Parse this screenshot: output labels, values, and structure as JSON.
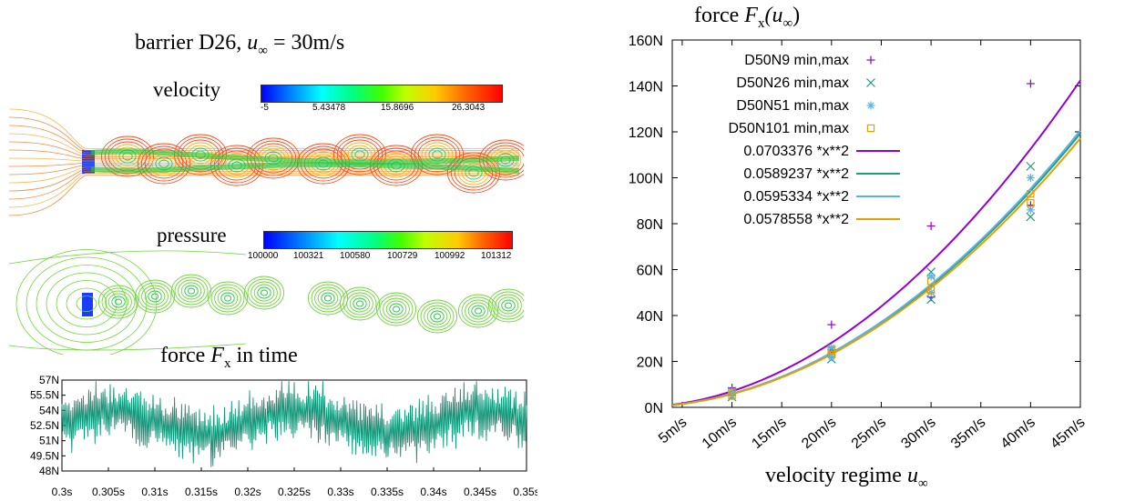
{
  "left": {
    "title_prefix": "barrier D26,",
    "title_math": "u",
    "title_sub": "∞",
    "title_suffix": " = 30m/s",
    "velocity": {
      "label": "velocity",
      "ticks": [
        "-5",
        "5.43478",
        "15.8696",
        "26.3043"
      ],
      "line_color": "#f26b1a"
    },
    "pressure": {
      "label": "pressure",
      "ticks": [
        "100000",
        "100321",
        "100580",
        "100729",
        "100992",
        "101312"
      ],
      "line_color": "#6fd53a"
    },
    "force_title_prefix": "force ",
    "force_title_math": "F",
    "force_title_sub": "x",
    "force_title_suffix": " in time"
  },
  "chart_data": [
    {
      "type": "line",
      "title": "force F_x in time",
      "x_ticks": [
        "0.3s",
        "0.305s",
        "0.31s",
        "0.315s",
        "0.32s",
        "0.325s",
        "0.33s",
        "0.335s",
        "0.34s",
        "0.345s",
        "0.35s"
      ],
      "y_ticks": [
        "57N",
        "55.5N",
        "54N",
        "52.5N",
        "51N",
        "49.5N",
        "48N"
      ],
      "xlim": [
        0.3,
        0.35
      ],
      "ylim": [
        48,
        57
      ],
      "series": [
        {
          "color": "#12967a"
        }
      ]
    },
    {
      "type": "line",
      "title_prefix": "force ",
      "title_math": "F",
      "title_sub": "x",
      "title_arg": "(u",
      "title_arg_sub": "∞",
      "title_close": ")",
      "xlabel_prefix": "velocity regime ",
      "xlabel_math": "u",
      "xlabel_sub": "∞",
      "x_ticks": [
        "5m/s",
        "10m/s",
        "15m/s",
        "20m/s",
        "25m/s",
        "30m/s",
        "35m/s",
        "40m/s",
        "45m/s"
      ],
      "x_tick_values": [
        5,
        10,
        15,
        20,
        25,
        30,
        35,
        40,
        45
      ],
      "y_ticks": [
        "0N",
        "20N",
        "40N",
        "60N",
        "80N",
        "100N",
        "120N",
        "140N",
        "160N"
      ],
      "y_tick_values": [
        0,
        20,
        40,
        60,
        80,
        100,
        120,
        140,
        160
      ],
      "xlim": [
        4,
        45
      ],
      "ylim": [
        0,
        160
      ],
      "scatter_series": [
        {
          "name": "D50N9 min,max",
          "marker": "+",
          "color": "#9400d3",
          "points": [
            [
              10,
              8
            ],
            [
              10,
              8.5
            ],
            [
              20,
              36
            ],
            [
              20,
              25
            ],
            [
              30,
              79
            ],
            [
              30,
              48
            ],
            [
              40,
              141
            ],
            [
              40,
              88
            ]
          ]
        },
        {
          "name": "D50N26 min,max",
          "marker": "x",
          "color": "#1f9e7a",
          "points": [
            [
              10,
              4.5
            ],
            [
              10,
              7
            ],
            [
              20,
              21
            ],
            [
              20,
              25
            ],
            [
              30,
              47
            ],
            [
              30,
              59
            ],
            [
              40,
              83
            ],
            [
              40,
              105
            ]
          ]
        },
        {
          "name": "D50N51 min,max",
          "marker": "*",
          "color": "#56b4e9",
          "points": [
            [
              10,
              5
            ],
            [
              10,
              7
            ],
            [
              20,
              22
            ],
            [
              20,
              26
            ],
            [
              30,
              50
            ],
            [
              30,
              57
            ],
            [
              40,
              86
            ],
            [
              40,
              100
            ]
          ]
        },
        {
          "name": "D50N101 min,max",
          "marker": "square",
          "color": "#e69f00",
          "points": [
            [
              10,
              5
            ],
            [
              10,
              6.5
            ],
            [
              20,
              23
            ],
            [
              20,
              25
            ],
            [
              30,
              51
            ],
            [
              30,
              55
            ],
            [
              40,
              89
            ],
            [
              40,
              93
            ]
          ]
        }
      ],
      "fit_series": [
        {
          "name": "0.0703376 *x**2",
          "coefficient": 0.0703376,
          "color": "#9400d3"
        },
        {
          "name": "0.0589237 *x**2",
          "coefficient": 0.0589237,
          "color": "#1f9e7a"
        },
        {
          "name": "0.0595334 *x**2",
          "coefficient": 0.0595334,
          "color": "#56b4e9"
        },
        {
          "name": "0.0578558 *x**2",
          "coefficient": 0.0578558,
          "color": "#e69f00"
        }
      ]
    }
  ]
}
